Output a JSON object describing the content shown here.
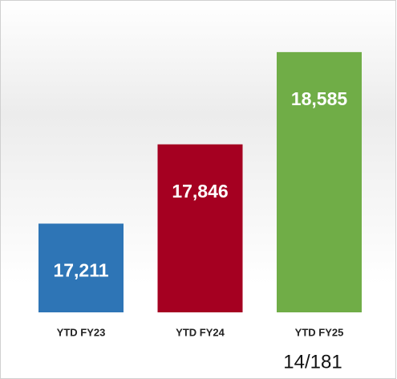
{
  "chart_data": {
    "type": "bar",
    "categories": [
      "YTD FY23",
      "YTD FY24",
      "YTD FY25"
    ],
    "values": [
      17211,
      17846,
      18585
    ],
    "value_labels": [
      "17,211",
      "17,846",
      "18,585"
    ],
    "colors": [
      "#2e75b6",
      "#a50021",
      "#70ad47"
    ],
    "ylim": [
      16500,
      18700
    ]
  },
  "page_label": "14/181"
}
